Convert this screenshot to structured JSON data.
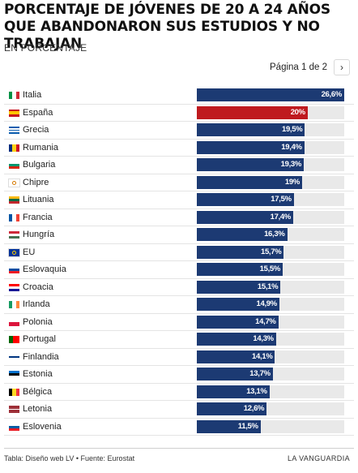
{
  "header": {
    "title": "PORCENTAJE DE JÓVENES DE 20 A 24 AÑOS QUE ABANDONARON SUS ESTUDIOS Y NO TRABAJAN",
    "subtitle": "EN PORCENTAJE"
  },
  "pager": {
    "label": "Página 1 de 2",
    "next_icon": "chevron-right-icon",
    "next_glyph": "›"
  },
  "colors": {
    "bar": "#1c3a73",
    "highlight": "#bf1a1f",
    "track": "#e9e9e9"
  },
  "footer": {
    "source": "Tabla: Diseño web LV • Fuente: Eurostat",
    "brand": "LA VANGUARDIA"
  },
  "chart_data": {
    "type": "bar",
    "orientation": "horizontal",
    "xlim": [
      0,
      26.6
    ],
    "highlight_category": "España",
    "categories": [
      "Italia",
      "España",
      "Grecia",
      "Rumania",
      "Bulgaria",
      "Chipre",
      "Lituania",
      "Francia",
      "Hungría",
      "EU",
      "Eslovaquia",
      "Croacia",
      "Irlanda",
      "Polonia",
      "Portugal",
      "Finlandia",
      "Estonia",
      "Bélgica",
      "Letonia",
      "Eslovenia"
    ],
    "values": [
      26.6,
      20,
      19.5,
      19.4,
      19.3,
      19,
      17.5,
      17.4,
      16.3,
      15.7,
      15.5,
      15.1,
      14.9,
      14.7,
      14.3,
      14.1,
      13.7,
      13.1,
      12.6,
      11.5
    ],
    "labels": [
      "26,6%",
      "20%",
      "19,5%",
      "19,4%",
      "19,3%",
      "19%",
      "17,5%",
      "17,4%",
      "16,3%",
      "15,7%",
      "15,5%",
      "15,1%",
      "14,9%",
      "14,7%",
      "14,3%",
      "14,1%",
      "13,7%",
      "13,1%",
      "12,6%",
      "11,5%"
    ],
    "flags": [
      {
        "dir": "v",
        "colors": [
          "#009246",
          "#ffffff",
          "#ce2b37"
        ]
      },
      {
        "dir": "h",
        "colors": [
          "#c60b1e",
          "#ffc400",
          "#c60b1e"
        ],
        "w": [
          1,
          2,
          1
        ]
      },
      {
        "dir": "h",
        "colors": [
          "#0d5eaf",
          "#ffffff",
          "#0d5eaf",
          "#ffffff",
          "#0d5eaf"
        ]
      },
      {
        "dir": "v",
        "colors": [
          "#002b7f",
          "#fcd116",
          "#ce1126"
        ]
      },
      {
        "dir": "h",
        "colors": [
          "#ffffff",
          "#00966e",
          "#d62612"
        ]
      },
      {
        "dir": "h",
        "colors": [
          "#ffffff"
        ],
        "mark": "#d57800"
      },
      {
        "dir": "h",
        "colors": [
          "#fdb913",
          "#006a44",
          "#c1272d"
        ]
      },
      {
        "dir": "v",
        "colors": [
          "#0055a4",
          "#ffffff",
          "#ef4135"
        ]
      },
      {
        "dir": "h",
        "colors": [
          "#ce2939",
          "#ffffff",
          "#477050"
        ]
      },
      {
        "dir": "h",
        "colors": [
          "#003399"
        ],
        "mark": "#ffcc00"
      },
      {
        "dir": "h",
        "colors": [
          "#ffffff",
          "#0b4ea2",
          "#ee1c25"
        ]
      },
      {
        "dir": "h",
        "colors": [
          "#ff0000",
          "#ffffff",
          "#171796"
        ]
      },
      {
        "dir": "v",
        "colors": [
          "#169b62",
          "#ffffff",
          "#ff883e"
        ]
      },
      {
        "dir": "h",
        "colors": [
          "#ffffff",
          "#dc143c"
        ]
      },
      {
        "dir": "v",
        "colors": [
          "#006600",
          "#ff0000"
        ],
        "w": [
          2,
          3
        ]
      },
      {
        "dir": "h",
        "colors": [
          "#ffffff",
          "#003580",
          "#ffffff"
        ],
        "w": [
          3,
          2,
          3
        ]
      },
      {
        "dir": "h",
        "colors": [
          "#0072ce",
          "#000000",
          "#ffffff"
        ]
      },
      {
        "dir": "v",
        "colors": [
          "#000000",
          "#fdda24",
          "#ef3340"
        ]
      },
      {
        "dir": "h",
        "colors": [
          "#9e3039",
          "#ffffff",
          "#9e3039"
        ],
        "w": [
          2,
          1,
          2
        ]
      },
      {
        "dir": "h",
        "colors": [
          "#ffffff",
          "#005da4",
          "#ed1c24"
        ]
      }
    ]
  }
}
